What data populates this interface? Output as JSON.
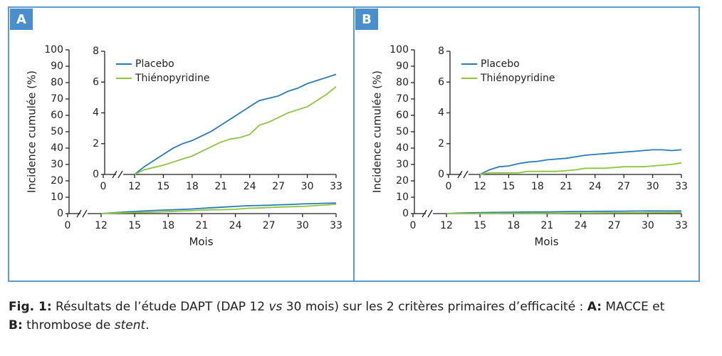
{
  "chart_data": [
    {
      "type": "line",
      "panel_label": "A",
      "ylabel": "Incidence cumulée (%)",
      "xlabel": "Mois",
      "x": [
        12,
        13,
        14,
        15,
        16,
        17,
        18,
        19,
        20,
        21,
        22,
        23,
        24,
        25,
        26,
        27,
        28,
        29,
        30,
        31,
        32,
        33
      ],
      "xlim": [
        0,
        33
      ],
      "xticks": [
        0,
        12,
        15,
        18,
        21,
        24,
        27,
        30,
        33
      ],
      "x_break": true,
      "ylim": [
        0,
        100
      ],
      "yticks": [
        0,
        10,
        20,
        30,
        40,
        50,
        60,
        70,
        80,
        90,
        100
      ],
      "series": [
        {
          "color": "#2a7ab8",
          "values": [
            0,
            0.5,
            0.9,
            1.3,
            1.7,
            2.0,
            2.2,
            2.5,
            2.8,
            3.2,
            3.6,
            4.0,
            4.4,
            4.8,
            4.95,
            5.1,
            5.4,
            5.6,
            5.9,
            6.1,
            6.3,
            6.5
          ]
        },
        {
          "color": "#8cc63f",
          "values": [
            0,
            0.3,
            0.45,
            0.6,
            0.8,
            1.0,
            1.2,
            1.5,
            1.8,
            2.1,
            2.3,
            2.4,
            2.6,
            3.2,
            3.4,
            3.7,
            4.0,
            4.2,
            4.4,
            4.8,
            5.2,
            5.7
          ]
        }
      ]
    },
    {
      "type": "line",
      "legend": "upper left",
      "x": [
        12,
        13,
        14,
        15,
        16,
        17,
        18,
        19,
        20,
        21,
        22,
        23,
        24,
        25,
        26,
        27,
        28,
        29,
        30,
        31,
        32,
        33
      ],
      "xlim": [
        0,
        33
      ],
      "xticks": [
        0,
        12,
        15,
        18,
        21,
        24,
        27,
        30,
        33
      ],
      "x_break": true,
      "ylim": [
        0,
        8
      ],
      "yticks": [
        0,
        2,
        4,
        6,
        8
      ],
      "series": [
        {
          "name": "Placebo",
          "color": "#2a7ab8",
          "values": [
            0,
            0.5,
            0.9,
            1.3,
            1.7,
            2.0,
            2.2,
            2.5,
            2.8,
            3.2,
            3.6,
            4.0,
            4.4,
            4.8,
            4.95,
            5.1,
            5.4,
            5.6,
            5.9,
            6.1,
            6.3,
            6.5
          ]
        },
        {
          "name": "Thiénopyridine",
          "color": "#8cc63f",
          "values": [
            0,
            0.3,
            0.45,
            0.6,
            0.8,
            1.0,
            1.2,
            1.5,
            1.8,
            2.1,
            2.3,
            2.4,
            2.6,
            3.2,
            3.4,
            3.7,
            4.0,
            4.2,
            4.4,
            4.8,
            5.2,
            5.7
          ]
        }
      ]
    },
    {
      "type": "line",
      "panel_label": "B",
      "ylabel": "Incidence cumulée (%)",
      "xlabel": "Mois",
      "x": [
        12,
        13,
        14,
        15,
        16,
        17,
        18,
        19,
        20,
        21,
        22,
        23,
        24,
        25,
        26,
        27,
        28,
        29,
        30,
        31,
        32,
        33
      ],
      "xlim": [
        0,
        33
      ],
      "xticks": [
        0,
        12,
        15,
        18,
        21,
        24,
        27,
        30,
        33
      ],
      "x_break": true,
      "ylim": [
        0,
        100
      ],
      "yticks": [
        0,
        10,
        20,
        30,
        40,
        50,
        60,
        70,
        80,
        90,
        100
      ],
      "series": [
        {
          "color": "#2a7ab8",
          "values": [
            0,
            0.3,
            0.5,
            0.55,
            0.7,
            0.8,
            0.85,
            0.95,
            1.0,
            1.05,
            1.15,
            1.25,
            1.3,
            1.35,
            1.4,
            1.45,
            1.5,
            1.55,
            1.6,
            1.6,
            1.55,
            1.6
          ]
        },
        {
          "color": "#8cc63f",
          "values": [
            0,
            0.1,
            0.1,
            0.1,
            0.1,
            0.2,
            0.2,
            0.2,
            0.2,
            0.25,
            0.3,
            0.4,
            0.4,
            0.4,
            0.45,
            0.5,
            0.5,
            0.5,
            0.55,
            0.6,
            0.65,
            0.75
          ]
        }
      ]
    },
    {
      "type": "line",
      "legend": "upper left",
      "x": [
        12,
        13,
        14,
        15,
        16,
        17,
        18,
        19,
        20,
        21,
        22,
        23,
        24,
        25,
        26,
        27,
        28,
        29,
        30,
        31,
        32,
        33
      ],
      "xlim": [
        0,
        33
      ],
      "xticks": [
        0,
        12,
        15,
        18,
        21,
        24,
        27,
        30,
        33
      ],
      "x_break": true,
      "ylim": [
        0,
        8
      ],
      "yticks": [
        0,
        2,
        4,
        6,
        8
      ],
      "series": [
        {
          "name": "Placebo",
          "color": "#2a7ab8",
          "values": [
            0,
            0.3,
            0.5,
            0.55,
            0.7,
            0.8,
            0.85,
            0.95,
            1.0,
            1.05,
            1.15,
            1.25,
            1.3,
            1.35,
            1.4,
            1.45,
            1.5,
            1.55,
            1.6,
            1.6,
            1.55,
            1.6
          ]
        },
        {
          "name": "Thiénopyridine",
          "color": "#8cc63f",
          "values": [
            0,
            0.1,
            0.1,
            0.1,
            0.1,
            0.2,
            0.2,
            0.2,
            0.2,
            0.25,
            0.3,
            0.4,
            0.4,
            0.4,
            0.45,
            0.5,
            0.5,
            0.5,
            0.55,
            0.6,
            0.65,
            0.75
          ]
        }
      ]
    }
  ],
  "caption": [
    {
      "text": "Fig. 1:",
      "style": "bold"
    },
    {
      "text": " Résultats de l’étude DAPT (DAP 12 "
    },
    {
      "text": "vs",
      "style": "italic"
    },
    {
      "text": " 30 mois) sur les 2 critères primaires d’efficacité : "
    },
    {
      "text": "A:",
      "style": "bold"
    },
    {
      "text": " MACCE et"
    },
    {
      "text": "B:",
      "style": "bold",
      "newline": true
    },
    {
      "text": " thrombose de "
    },
    {
      "text": "stent",
      "style": "italic"
    },
    {
      "text": "."
    }
  ]
}
